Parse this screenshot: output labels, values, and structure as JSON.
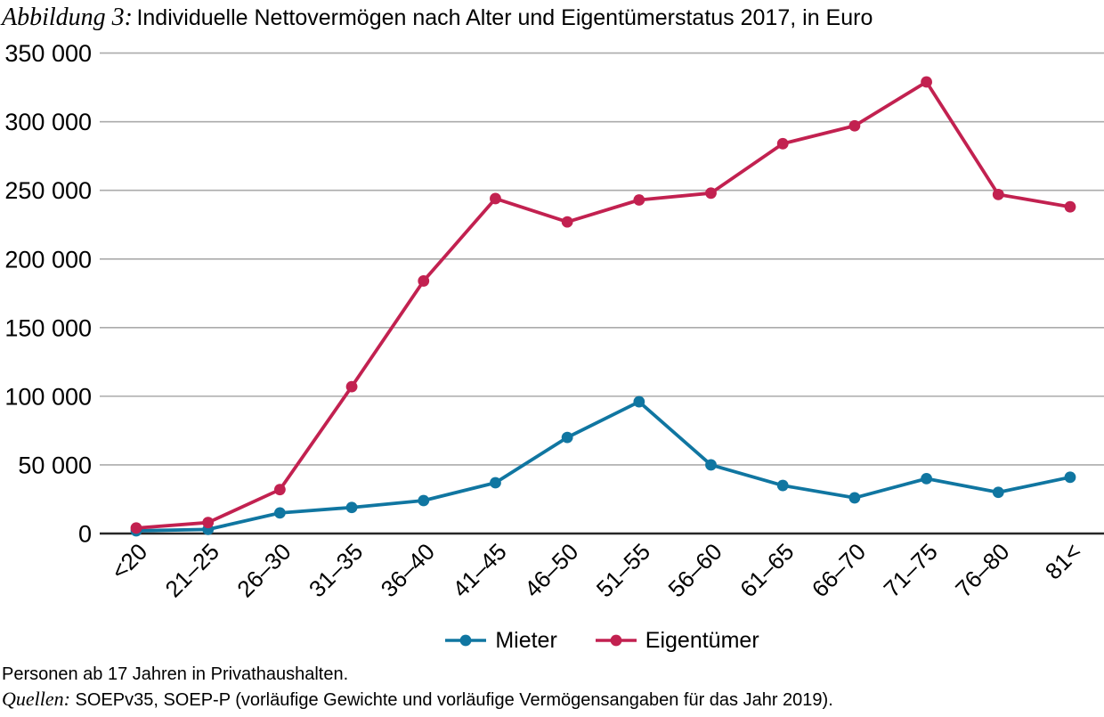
{
  "title": {
    "prefix": "Abbildung 3:",
    "text": "Individuelle Nettovermögen nach Alter und Eigentümerstatus 2017, in Euro"
  },
  "legend": {
    "items": [
      {
        "label": "Mieter",
        "color": "#1076A1"
      },
      {
        "label": "Eigentümer",
        "color": "#C22150"
      }
    ]
  },
  "footer": {
    "note": "Personen ab 17 Jahren in Privathaushalten.",
    "sources_label": "Quellen:",
    "sources_text": " SOEPv35, SOEP-P (vorläufige Gewichte und vorläufige Vermögensangaben für das Jahr 2019)."
  },
  "chart_data": {
    "type": "line",
    "title": "Individuelle Nettovermögen nach Alter und Eigentümerstatus 2017, in Euro",
    "categories": [
      "<20",
      "21–25",
      "26–30",
      "31–35",
      "36–40",
      "41–45",
      "46–50",
      "51–55",
      "56–60",
      "61–65",
      "66–70",
      "71–75",
      "76–80",
      "81<"
    ],
    "series": [
      {
        "name": "Mieter",
        "color": "#1076A1",
        "values": [
          2000,
          3000,
          15000,
          19000,
          24000,
          37000,
          70000,
          96000,
          50000,
          35000,
          26000,
          40000,
          30000,
          41000
        ]
      },
      {
        "name": "Eigentümer",
        "color": "#C22150",
        "values": [
          4000,
          8000,
          32000,
          107000,
          184000,
          244000,
          227000,
          243000,
          248000,
          284000,
          297000,
          329000,
          247000,
          238000
        ]
      }
    ],
    "y_ticks": [
      {
        "value": 0,
        "label": "0"
      },
      {
        "value": 50000,
        "label": "50 000"
      },
      {
        "value": 100000,
        "label": "100 000"
      },
      {
        "value": 150000,
        "label": "150 000"
      },
      {
        "value": 200000,
        "label": "200 000"
      },
      {
        "value": 250000,
        "label": "250 000"
      },
      {
        "value": 300000,
        "label": "300 000"
      },
      {
        "value": 350000,
        "label": "350 000"
      }
    ],
    "xlabel": "",
    "ylabel": "",
    "ylim": [
      0,
      350000
    ],
    "grid": "horizontal",
    "legend_position": "bottom",
    "marker": "circle",
    "colors": {
      "grid": "#ABABAB",
      "axis": "#262626",
      "text": "#000000"
    }
  }
}
